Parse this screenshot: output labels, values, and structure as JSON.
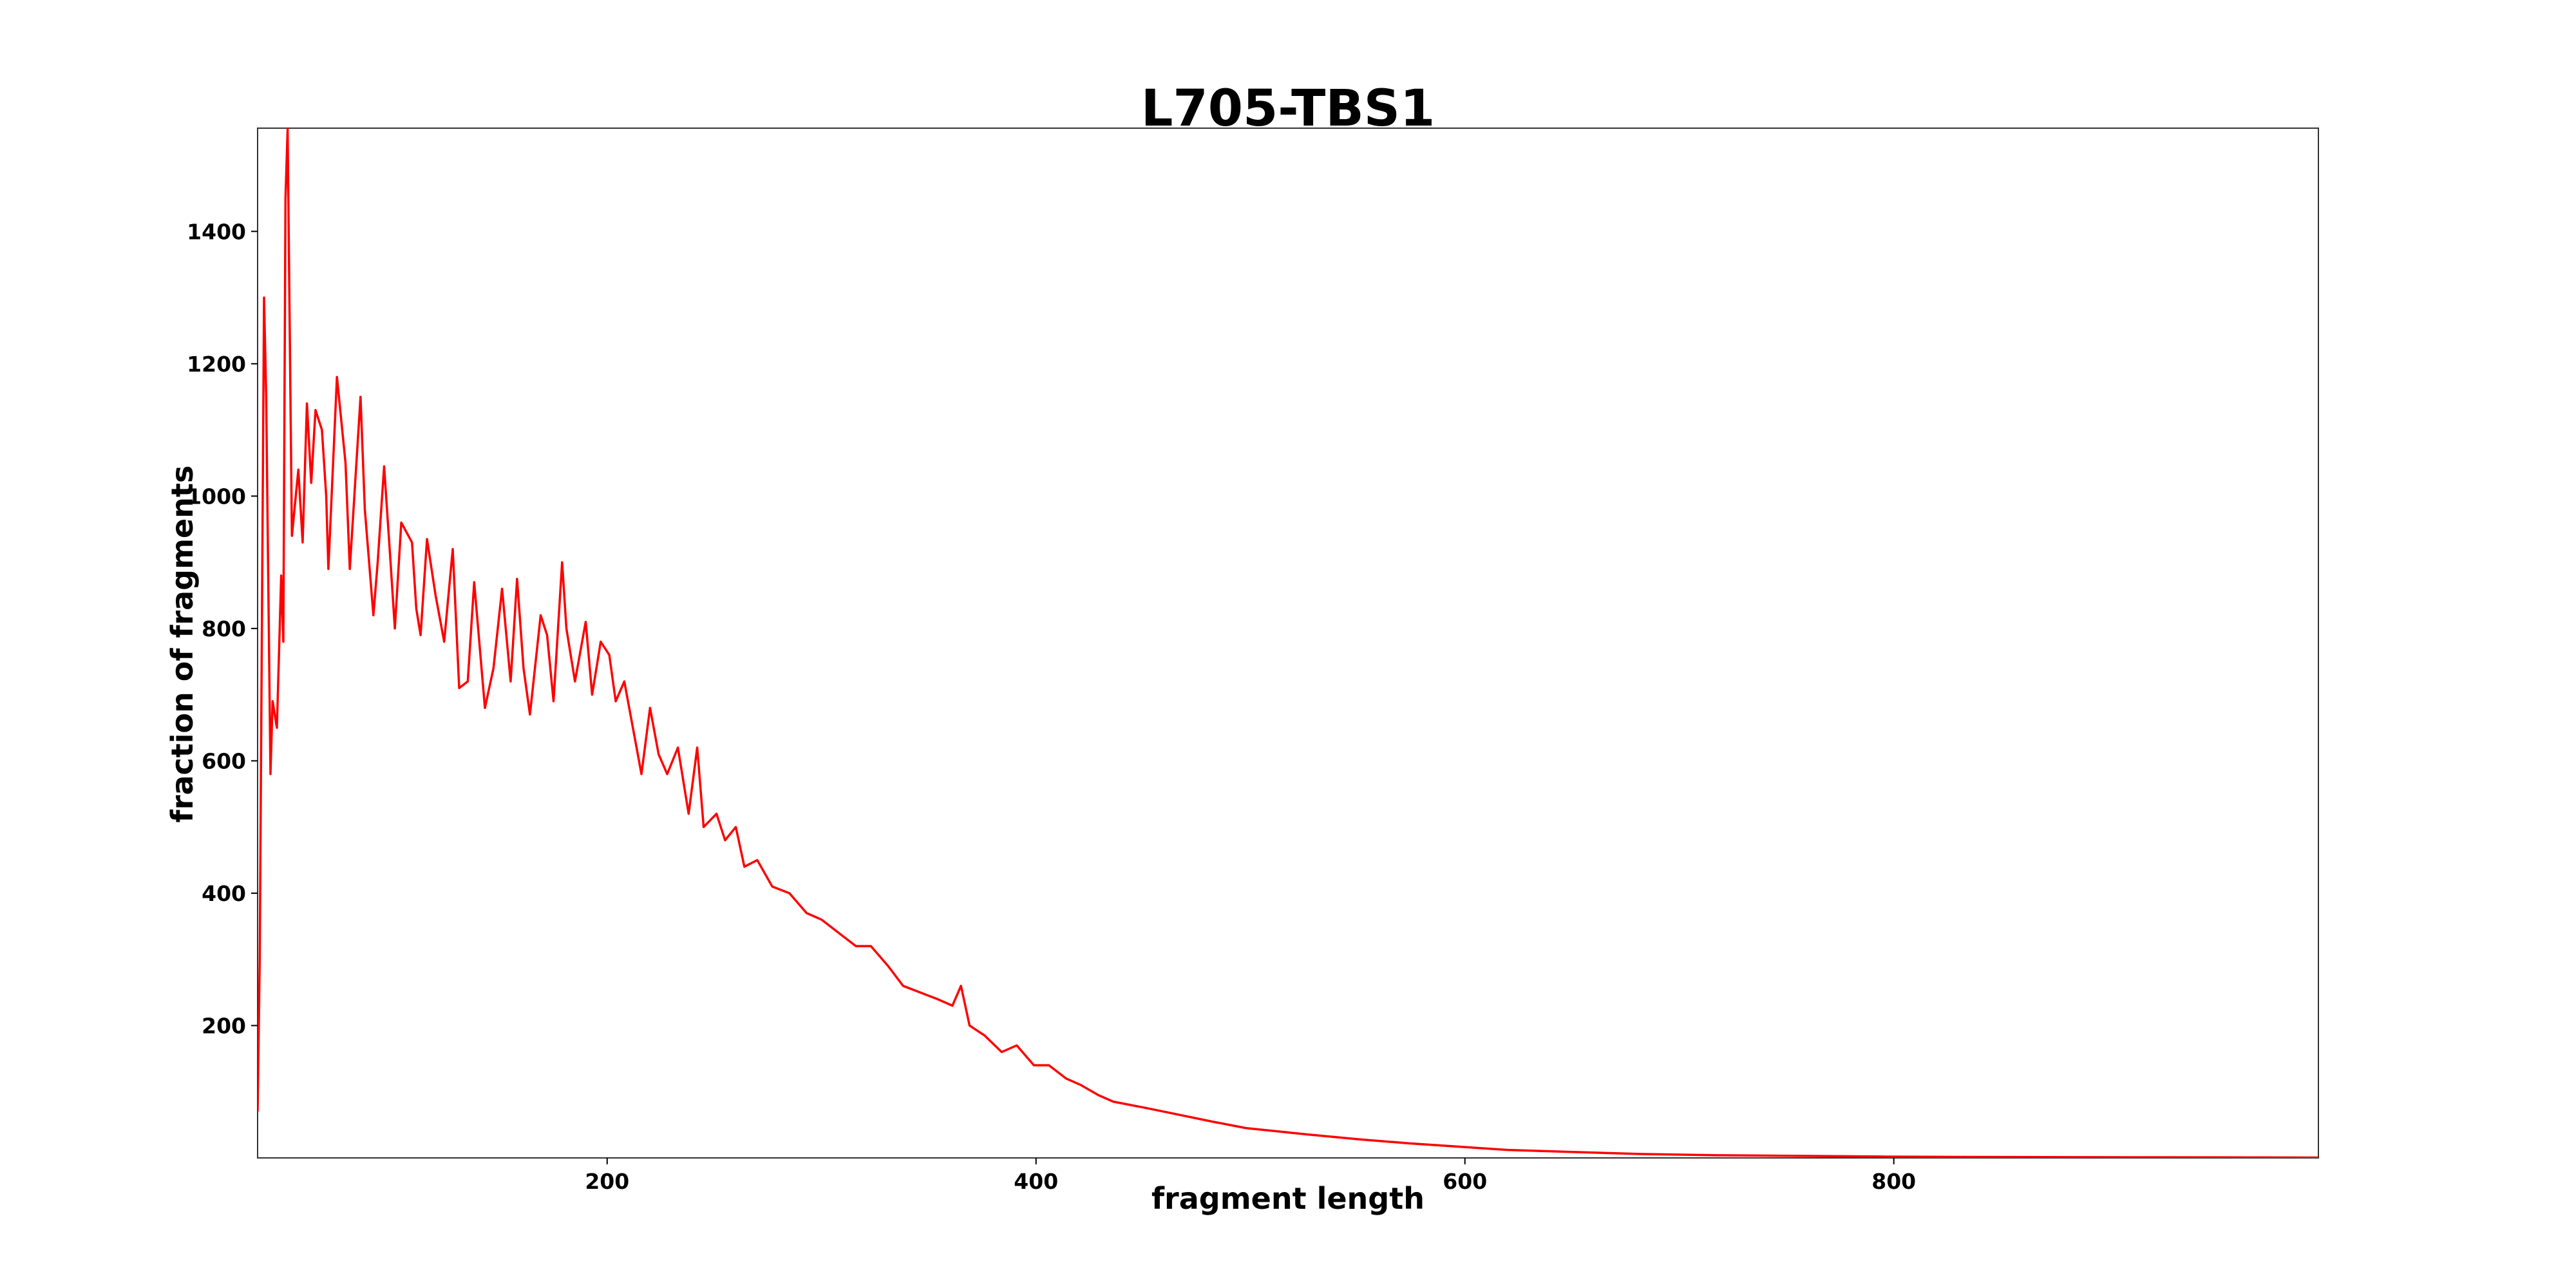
{
  "chart_data": {
    "type": "line",
    "title": "L705-TBS1",
    "xlabel": "fragment length",
    "ylabel": "fraction of fragments",
    "color": "#ff0000",
    "grid": false,
    "xlim": [
      37,
      998
    ],
    "ylim": [
      0,
      1556
    ],
    "xticks": [
      200,
      400,
      600,
      800
    ],
    "yticks": [
      200,
      400,
      600,
      800,
      1000,
      1200,
      1400
    ],
    "x": [
      37,
      38,
      40,
      41,
      43,
      44,
      46,
      48,
      49,
      50,
      51,
      53,
      56,
      58,
      60,
      62,
      64,
      67,
      69,
      70,
      74,
      78,
      80,
      85,
      87,
      91,
      93,
      96,
      99,
      101,
      104,
      109,
      111,
      113,
      116,
      120,
      124,
      128,
      131,
      135,
      138,
      143,
      147,
      151,
      155,
      158,
      161,
      164,
      169,
      172,
      175,
      179,
      181,
      185,
      190,
      193,
      197,
      201,
      204,
      208,
      212,
      216,
      220,
      224,
      228,
      233,
      238,
      242,
      245,
      251,
      255,
      260,
      264,
      270,
      277,
      285,
      293,
      300,
      308,
      316,
      323,
      331,
      338,
      346,
      354,
      361,
      365,
      369,
      376,
      384,
      391,
      399,
      406,
      414,
      421,
      429,
      436,
      452,
      467,
      482,
      498,
      513,
      528,
      551,
      574,
      597,
      620,
      650,
      681,
      719,
      758,
      796,
      834,
      911,
      998
    ],
    "values": [
      70,
      300,
      1300,
      1150,
      580,
      690,
      650,
      880,
      780,
      1450,
      1555,
      940,
      1040,
      930,
      1140,
      1020,
      1130,
      1100,
      1000,
      890,
      1180,
      1050,
      890,
      1150,
      980,
      820,
      900,
      1045,
      900,
      800,
      960,
      930,
      830,
      790,
      935,
      850,
      780,
      920,
      710,
      720,
      870,
      680,
      740,
      860,
      720,
      875,
      740,
      670,
      820,
      790,
      690,
      900,
      800,
      720,
      810,
      700,
      780,
      760,
      690,
      720,
      650,
      580,
      680,
      610,
      580,
      620,
      520,
      620,
      500,
      520,
      480,
      500,
      440,
      450,
      410,
      400,
      370,
      360,
      340,
      320,
      320,
      290,
      260,
      250,
      240,
      230,
      260,
      200,
      185,
      160,
      170,
      140,
      140,
      120,
      110,
      95,
      85,
      75,
      65,
      55,
      45,
      40,
      35,
      28,
      22,
      17,
      12,
      9,
      6,
      4,
      3,
      2,
      1.5,
      1,
      0.5
    ]
  }
}
